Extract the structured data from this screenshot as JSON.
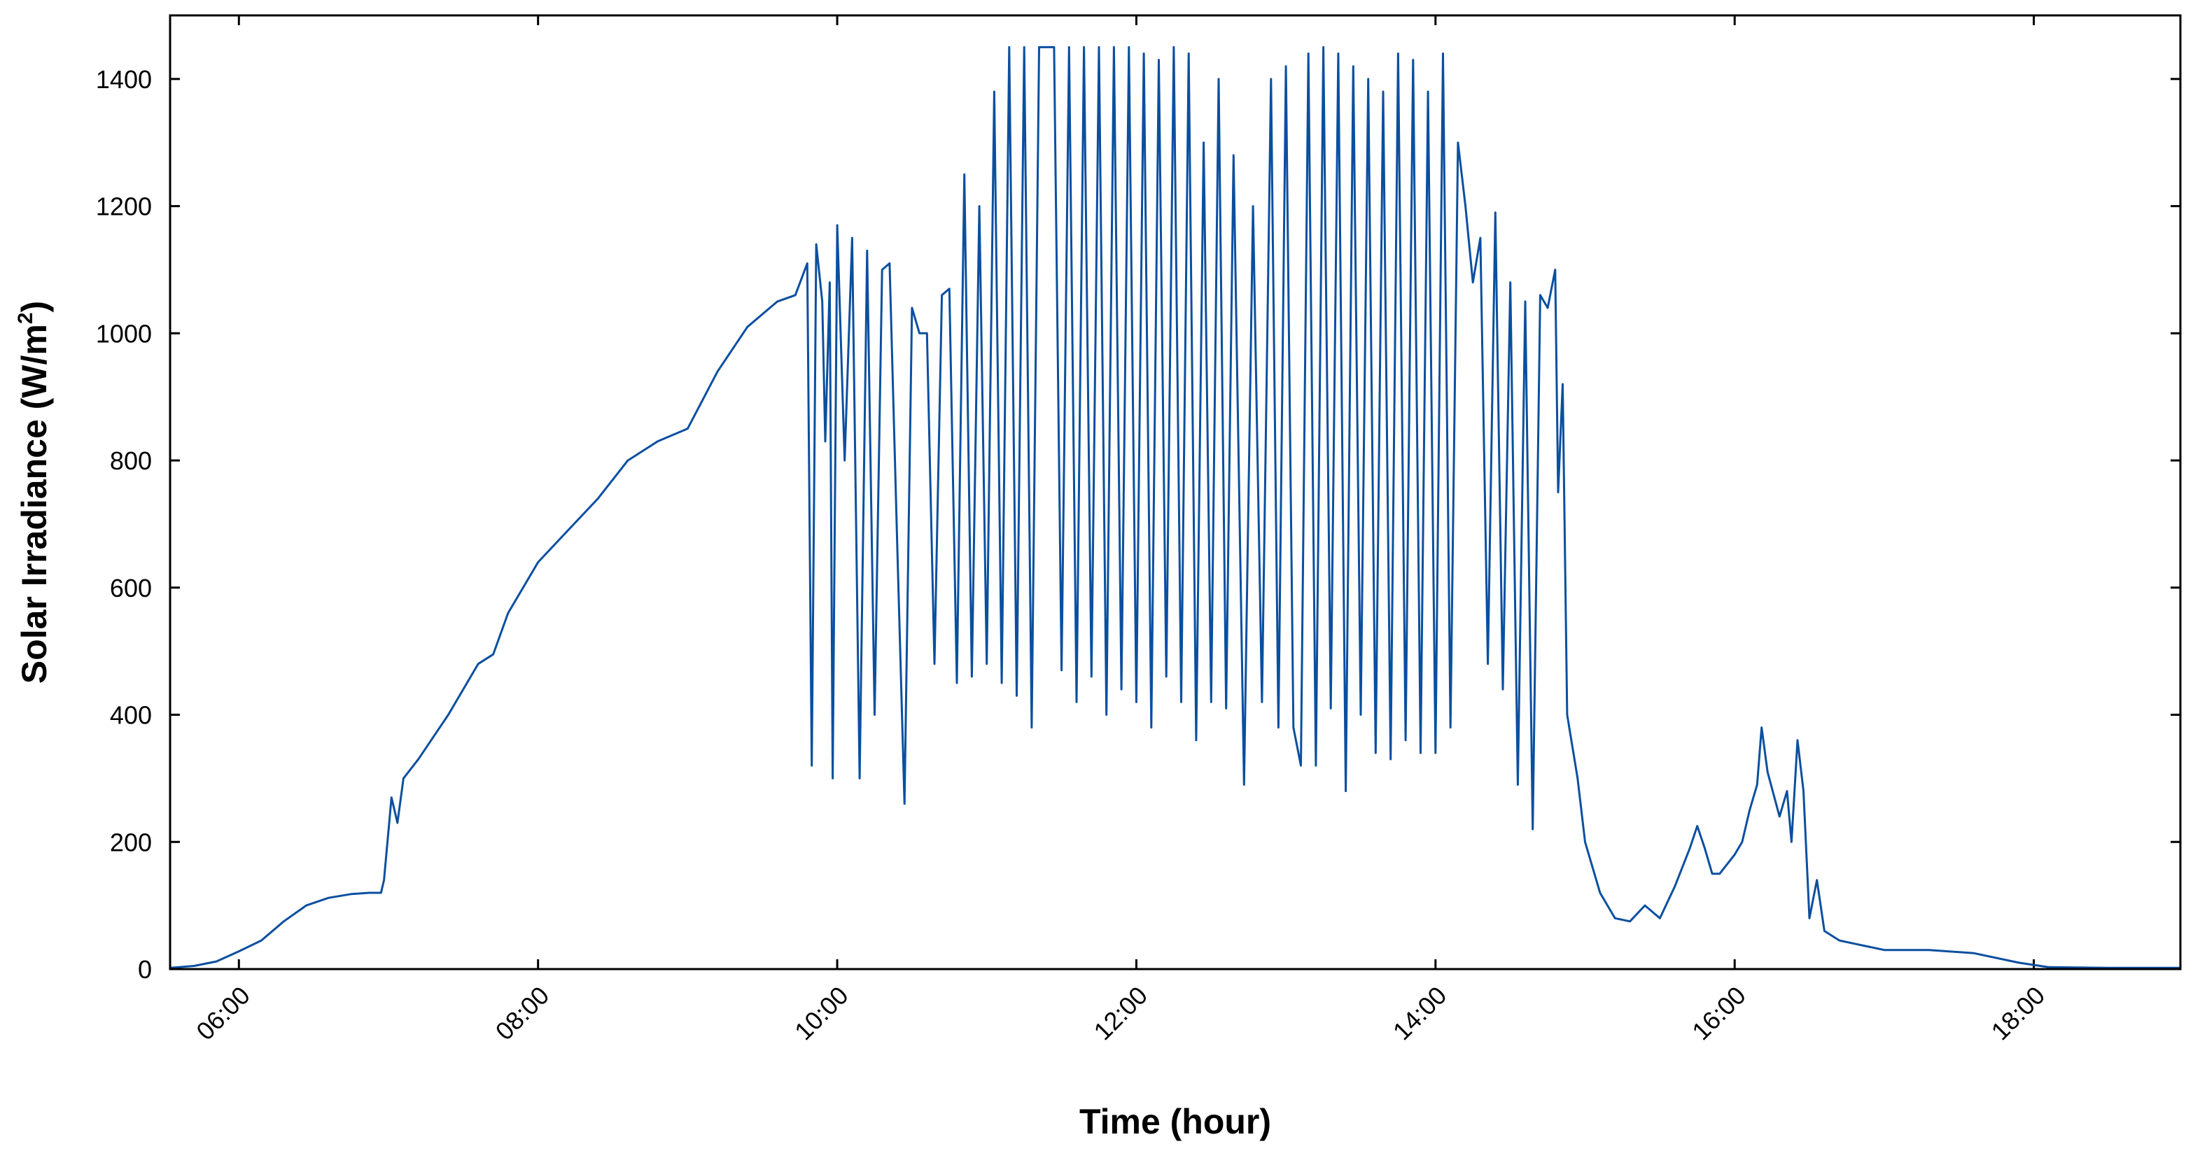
{
  "chart_data": {
    "type": "line",
    "title": "",
    "xlabel": "Time (hour)",
    "ylabel_main": "Solar Irradiance (W/m",
    "ylabel_sup": "2",
    "ylabel_close": ")",
    "x_unit": "hour of day",
    "xlim": [
      5.54,
      18.98
    ],
    "ylim": [
      0,
      1500
    ],
    "grid": false,
    "line_color": "#0b4f9f",
    "x_ticks": [
      {
        "value": 6,
        "label": "06:00"
      },
      {
        "value": 8,
        "label": "08:00"
      },
      {
        "value": 10,
        "label": "10:00"
      },
      {
        "value": 12,
        "label": "12:00"
      },
      {
        "value": 14,
        "label": "14:00"
      },
      {
        "value": 16,
        "label": "16:00"
      },
      {
        "value": 18,
        "label": "18:00"
      }
    ],
    "y_ticks": [
      {
        "value": 0,
        "label": "0"
      },
      {
        "value": 200,
        "label": "200"
      },
      {
        "value": 400,
        "label": "400"
      },
      {
        "value": 600,
        "label": "600"
      },
      {
        "value": 800,
        "label": "800"
      },
      {
        "value": 1000,
        "label": "1000"
      },
      {
        "value": 1200,
        "label": "1200"
      },
      {
        "value": 1400,
        "label": "1400"
      }
    ],
    "series": [
      {
        "points": [
          [
            5.54,
            2
          ],
          [
            5.7,
            5
          ],
          [
            5.85,
            12
          ],
          [
            6.0,
            28
          ],
          [
            6.15,
            45
          ],
          [
            6.3,
            75
          ],
          [
            6.45,
            100
          ],
          [
            6.6,
            112
          ],
          [
            6.75,
            118
          ],
          [
            6.87,
            120
          ],
          [
            6.95,
            120
          ],
          [
            6.97,
            140
          ],
          [
            7.02,
            270
          ],
          [
            7.06,
            230
          ],
          [
            7.1,
            300
          ],
          [
            7.2,
            330
          ],
          [
            7.4,
            400
          ],
          [
            7.6,
            480
          ],
          [
            7.7,
            495
          ],
          [
            7.8,
            560
          ],
          [
            8.0,
            640
          ],
          [
            8.2,
            690
          ],
          [
            8.4,
            740
          ],
          [
            8.6,
            800
          ],
          [
            8.8,
            830
          ],
          [
            9.0,
            850
          ],
          [
            9.2,
            940
          ],
          [
            9.4,
            1010
          ],
          [
            9.6,
            1050
          ],
          [
            9.72,
            1060
          ],
          [
            9.8,
            1110
          ],
          [
            9.83,
            320
          ],
          [
            9.86,
            1140
          ],
          [
            9.9,
            1050
          ],
          [
            9.92,
            830
          ],
          [
            9.95,
            1080
          ],
          [
            9.97,
            300
          ],
          [
            10.0,
            1170
          ],
          [
            10.05,
            800
          ],
          [
            10.1,
            1150
          ],
          [
            10.15,
            300
          ],
          [
            10.2,
            1130
          ],
          [
            10.25,
            400
          ],
          [
            10.3,
            1100
          ],
          [
            10.35,
            1110
          ],
          [
            10.4,
            680
          ],
          [
            10.45,
            260
          ],
          [
            10.5,
            1040
          ],
          [
            10.55,
            1000
          ],
          [
            10.6,
            1000
          ],
          [
            10.65,
            480
          ],
          [
            10.7,
            1060
          ],
          [
            10.75,
            1070
          ],
          [
            10.8,
            450
          ],
          [
            10.85,
            1250
          ],
          [
            10.9,
            460
          ],
          [
            10.95,
            1200
          ],
          [
            11.0,
            480
          ],
          [
            11.05,
            1380
          ],
          [
            11.1,
            450
          ],
          [
            11.15,
            1450
          ],
          [
            11.2,
            430
          ],
          [
            11.25,
            1450
          ],
          [
            11.3,
            380
          ],
          [
            11.35,
            1450
          ],
          [
            11.45,
            1450
          ],
          [
            11.5,
            470
          ],
          [
            11.55,
            1450
          ],
          [
            11.6,
            420
          ],
          [
            11.65,
            1450
          ],
          [
            11.7,
            460
          ],
          [
            11.75,
            1450
          ],
          [
            11.8,
            400
          ],
          [
            11.85,
            1450
          ],
          [
            11.9,
            440
          ],
          [
            11.95,
            1450
          ],
          [
            12.0,
            420
          ],
          [
            12.05,
            1440
          ],
          [
            12.1,
            380
          ],
          [
            12.15,
            1430
          ],
          [
            12.2,
            460
          ],
          [
            12.25,
            1450
          ],
          [
            12.3,
            420
          ],
          [
            12.35,
            1440
          ],
          [
            12.4,
            360
          ],
          [
            12.45,
            1300
          ],
          [
            12.5,
            420
          ],
          [
            12.55,
            1400
          ],
          [
            12.6,
            410
          ],
          [
            12.65,
            1280
          ],
          [
            12.72,
            290
          ],
          [
            12.78,
            1200
          ],
          [
            12.84,
            420
          ],
          [
            12.9,
            1400
          ],
          [
            12.95,
            380
          ],
          [
            13.0,
            1420
          ],
          [
            13.05,
            380
          ],
          [
            13.1,
            320
          ],
          [
            13.15,
            1440
          ],
          [
            13.2,
            320
          ],
          [
            13.25,
            1450
          ],
          [
            13.3,
            410
          ],
          [
            13.35,
            1440
          ],
          [
            13.4,
            280
          ],
          [
            13.45,
            1420
          ],
          [
            13.5,
            400
          ],
          [
            13.55,
            1400
          ],
          [
            13.6,
            340
          ],
          [
            13.65,
            1380
          ],
          [
            13.7,
            330
          ],
          [
            13.75,
            1440
          ],
          [
            13.8,
            360
          ],
          [
            13.85,
            1430
          ],
          [
            13.9,
            340
          ],
          [
            13.95,
            1380
          ],
          [
            14.0,
            340
          ],
          [
            14.05,
            1440
          ],
          [
            14.1,
            380
          ],
          [
            14.15,
            1300
          ],
          [
            14.2,
            1200
          ],
          [
            14.25,
            1080
          ],
          [
            14.3,
            1150
          ],
          [
            14.35,
            480
          ],
          [
            14.4,
            1190
          ],
          [
            14.45,
            440
          ],
          [
            14.5,
            1080
          ],
          [
            14.55,
            290
          ],
          [
            14.6,
            1050
          ],
          [
            14.65,
            220
          ],
          [
            14.7,
            1060
          ],
          [
            14.75,
            1040
          ],
          [
            14.8,
            1100
          ],
          [
            14.82,
            750
          ],
          [
            14.85,
            920
          ],
          [
            14.88,
            400
          ],
          [
            14.95,
            300
          ],
          [
            15.0,
            200
          ],
          [
            15.1,
            120
          ],
          [
            15.2,
            80
          ],
          [
            15.3,
            75
          ],
          [
            15.4,
            100
          ],
          [
            15.5,
            80
          ],
          [
            15.6,
            130
          ],
          [
            15.7,
            190
          ],
          [
            15.75,
            225
          ],
          [
            15.8,
            190
          ],
          [
            15.85,
            150
          ],
          [
            15.9,
            150
          ],
          [
            16.0,
            180
          ],
          [
            16.05,
            200
          ],
          [
            16.1,
            250
          ],
          [
            16.15,
            290
          ],
          [
            16.18,
            380
          ],
          [
            16.22,
            310
          ],
          [
            16.3,
            240
          ],
          [
            16.35,
            280
          ],
          [
            16.38,
            200
          ],
          [
            16.42,
            360
          ],
          [
            16.46,
            280
          ],
          [
            16.5,
            80
          ],
          [
            16.55,
            140
          ],
          [
            16.6,
            60
          ],
          [
            16.7,
            45
          ],
          [
            16.8,
            40
          ],
          [
            17.0,
            30
          ],
          [
            17.3,
            30
          ],
          [
            17.6,
            25
          ],
          [
            17.9,
            10
          ],
          [
            18.1,
            3
          ],
          [
            18.5,
            2
          ],
          [
            18.98,
            2
          ]
        ]
      }
    ]
  }
}
